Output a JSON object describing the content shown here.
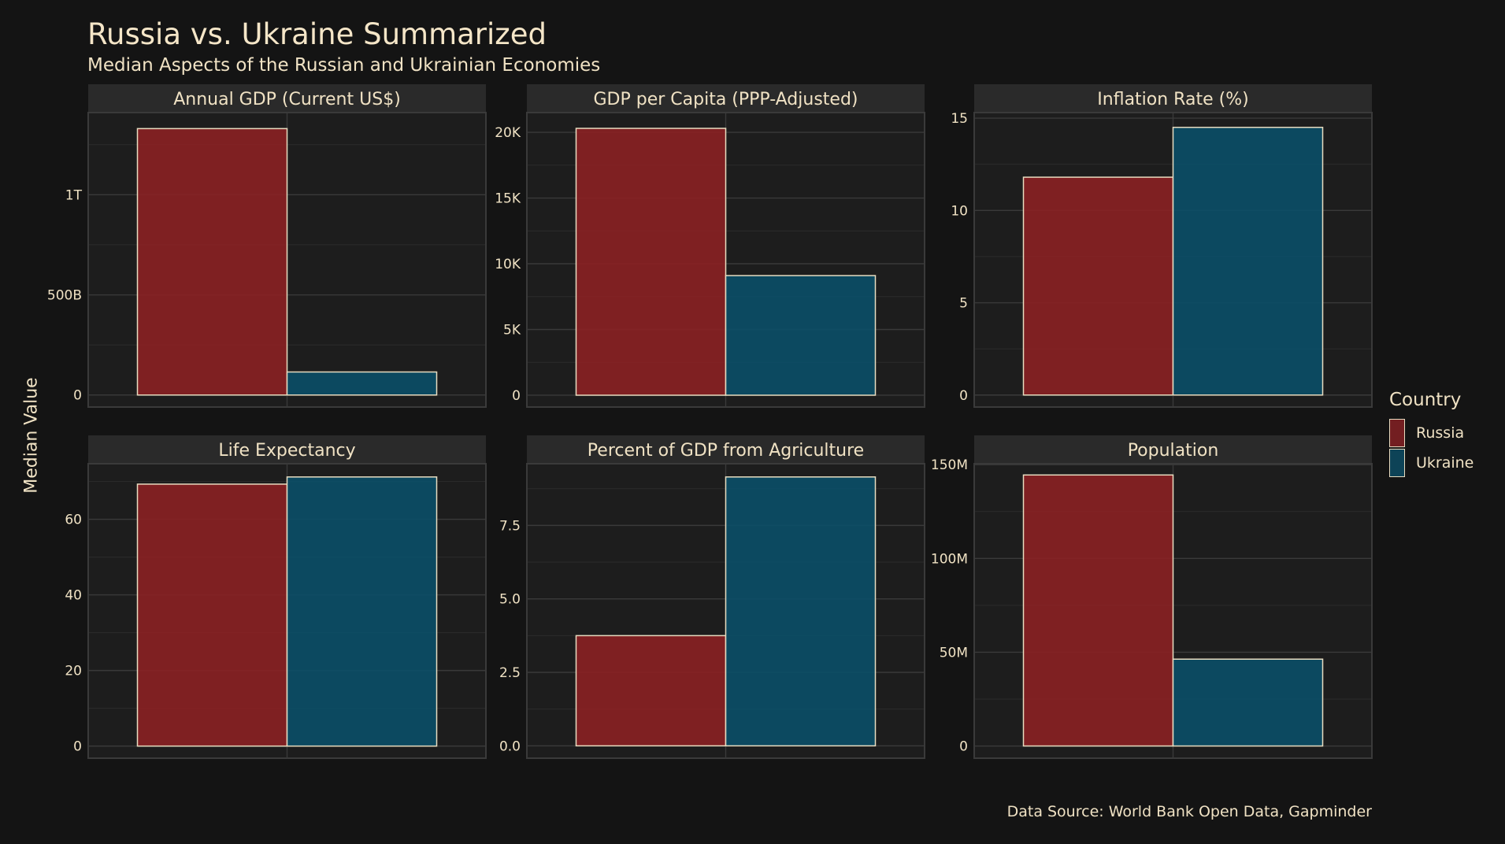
{
  "title": "Russia vs. Ukraine Summarized",
  "subtitle": "Median Aspects of the Russian and Ukrainian Economies",
  "y_axis_label": "Median Value",
  "caption": "Data Source: World Bank Open Data, Gapminder",
  "legend": {
    "title": "Country",
    "items": [
      {
        "label": "Russia",
        "color": "#8b2124"
      },
      {
        "label": "Ukraine",
        "color": "#0b4f68"
      }
    ]
  },
  "colors": {
    "background": "#141414",
    "panel": "#1d1d1d",
    "strip": "#2a2a2a",
    "grid": "#3a3a3a",
    "text": "#f0e2c4",
    "bar_outline": "#e8dcc0",
    "russia": "#8b2124",
    "ukraine": "#0b4f68"
  },
  "chart_data": [
    {
      "type": "bar",
      "title": "Annual GDP (Current US$)",
      "categories": [
        "Russia",
        "Ukraine"
      ],
      "values": [
        1330000000000,
        115000000000
      ],
      "ylim": [
        -60000000000,
        1410000000000
      ],
      "ticks": [
        0,
        500000000000,
        1000000000000
      ],
      "tick_labels": [
        "0",
        "500B",
        "1T"
      ]
    },
    {
      "type": "bar",
      "title": "GDP per Capita (PPP-Adjusted)",
      "categories": [
        "Russia",
        "Ukraine"
      ],
      "values": [
        20300,
        9100
      ],
      "ylim": [
        -900,
        21500
      ],
      "ticks": [
        0,
        5000,
        10000,
        15000,
        20000
      ],
      "tick_labels": [
        "0",
        "5K",
        "10K",
        "15K",
        "20K"
      ]
    },
    {
      "type": "bar",
      "title": "Inflation Rate (%)",
      "categories": [
        "Russia",
        "Ukraine"
      ],
      "values": [
        11.8,
        14.5
      ],
      "ylim": [
        -0.65,
        15.3
      ],
      "ticks": [
        0,
        5,
        10,
        15
      ],
      "tick_labels": [
        "0",
        "5",
        "10",
        "15"
      ]
    },
    {
      "type": "bar",
      "title": "Life Expectancy",
      "categories": [
        "Russia",
        "Ukraine"
      ],
      "values": [
        69.3,
        71.2
      ],
      "ylim": [
        -3.2,
        74.7
      ],
      "ticks": [
        0,
        20,
        40,
        60
      ],
      "tick_labels": [
        "0",
        "20",
        "40",
        "60"
      ]
    },
    {
      "type": "bar",
      "title": "Percent of GDP from Agriculture",
      "categories": [
        "Russia",
        "Ukraine"
      ],
      "values": [
        3.75,
        9.15
      ],
      "ylim": [
        -0.42,
        9.6
      ],
      "ticks": [
        0,
        2.5,
        5,
        7.5
      ],
      "tick_labels": [
        "0.0",
        "2.5",
        "5.0",
        "7.5"
      ]
    },
    {
      "type": "bar",
      "title": "Population",
      "categories": [
        "Russia",
        "Ukraine"
      ],
      "values": [
        144500000,
        46300000
      ],
      "ylim": [
        -6500000,
        150500000
      ],
      "ticks": [
        0,
        50000000,
        100000000,
        150000000
      ],
      "tick_labels": [
        "0",
        "50M",
        "100M",
        "150M"
      ]
    }
  ]
}
